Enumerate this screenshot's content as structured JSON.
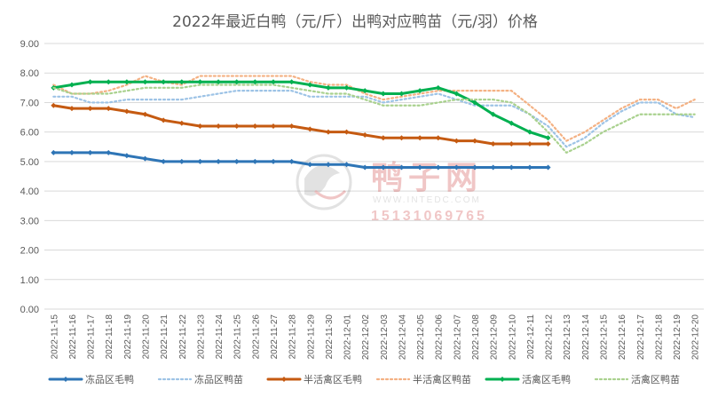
{
  "chart_data": {
    "type": "line",
    "title": "2022年最近白鸭（元/斤）出鸭对应鸭苗（元/羽）价格",
    "xlabel": "",
    "ylabel": "",
    "ylim": [
      0,
      9
    ],
    "yticks": [
      "0.00",
      "1.00",
      "2.00",
      "3.00",
      "4.00",
      "5.00",
      "6.00",
      "7.00",
      "8.00",
      "9.00"
    ],
    "grid": true,
    "legend_position": "bottom",
    "categories": [
      "2022-11-15",
      "2022-11-16",
      "2022-11-17",
      "2022-11-18",
      "2022-11-19",
      "2022-11-20",
      "2022-11-21",
      "2022-11-22",
      "2022-11-23",
      "2022-11-24",
      "2022-11-25",
      "2022-11-26",
      "2022-11-27",
      "2022-11-28",
      "2022-11-29",
      "2022-11-30",
      "2022-12-01",
      "2022-12-02",
      "2022-12-03",
      "2022-12-04",
      "2022-12-05",
      "2022-12-06",
      "2022-12-07",
      "2022-12-08",
      "2022-12-09",
      "2022-12-10",
      "2022-12-11",
      "2022-12-12",
      "2022-12-13",
      "2022-12-14",
      "2022-12-15",
      "2022-12-16",
      "2022-12-17",
      "2022-12-18",
      "2022-12-19",
      "2022-12-20"
    ],
    "series": [
      {
        "name": "冻品区毛鸭",
        "color": "#2e75b6",
        "style": "solid",
        "values": [
          5.3,
          5.3,
          5.3,
          5.3,
          5.2,
          5.1,
          5.0,
          5.0,
          5.0,
          5.0,
          5.0,
          5.0,
          5.0,
          5.0,
          4.9,
          4.9,
          4.9,
          4.8,
          4.8,
          4.8,
          4.8,
          4.8,
          4.8,
          4.8,
          4.8,
          4.8,
          4.8,
          4.8,
          null,
          null,
          null,
          null,
          null,
          null,
          null,
          null
        ]
      },
      {
        "name": "冻品区鸭苗",
        "color": "#9dc3e6",
        "style": "dotted",
        "values": [
          7.2,
          7.2,
          7.0,
          7.0,
          7.1,
          7.1,
          7.1,
          7.1,
          7.2,
          7.3,
          7.4,
          7.4,
          7.4,
          7.4,
          7.2,
          7.2,
          7.2,
          7.2,
          7.0,
          7.1,
          7.2,
          7.3,
          7.1,
          6.9,
          6.9,
          6.9,
          6.6,
          6.2,
          5.5,
          5.8,
          6.3,
          6.7,
          7.0,
          7.0,
          6.6,
          6.5
        ]
      },
      {
        "name": "半活禽区毛鸭",
        "color": "#c55a11",
        "style": "solid",
        "values": [
          6.9,
          6.8,
          6.8,
          6.8,
          6.7,
          6.6,
          6.4,
          6.3,
          6.2,
          6.2,
          6.2,
          6.2,
          6.2,
          6.2,
          6.1,
          6.0,
          6.0,
          5.9,
          5.8,
          5.8,
          5.8,
          5.8,
          5.7,
          5.7,
          5.6,
          5.6,
          5.6,
          5.6,
          null,
          null,
          null,
          null,
          null,
          null,
          null,
          null
        ]
      },
      {
        "name": "半活禽区鸭苗",
        "color": "#f4b183",
        "style": "dotted",
        "values": [
          7.6,
          7.3,
          7.3,
          7.4,
          7.6,
          7.9,
          7.7,
          7.6,
          7.9,
          7.9,
          7.9,
          7.9,
          7.9,
          7.9,
          7.7,
          7.6,
          7.6,
          7.3,
          7.1,
          7.2,
          7.3,
          7.4,
          7.4,
          7.4,
          7.4,
          7.4,
          6.9,
          6.4,
          5.7,
          6.0,
          6.4,
          6.8,
          7.1,
          7.1,
          6.8,
          7.1
        ]
      },
      {
        "name": "活禽区毛鸭",
        "color": "#00b050",
        "style": "solid",
        "values": [
          7.5,
          7.6,
          7.7,
          7.7,
          7.7,
          7.7,
          7.7,
          7.7,
          7.7,
          7.7,
          7.7,
          7.7,
          7.7,
          7.7,
          7.6,
          7.5,
          7.5,
          7.4,
          7.3,
          7.3,
          7.4,
          7.5,
          7.3,
          7.0,
          6.6,
          6.3,
          6.0,
          5.8,
          null,
          null,
          null,
          null,
          null,
          null,
          null,
          null
        ]
      },
      {
        "name": "活禽区鸭苗",
        "color": "#a9d18e",
        "style": "dotted",
        "values": [
          7.5,
          7.3,
          7.3,
          7.3,
          7.4,
          7.5,
          7.5,
          7.5,
          7.6,
          7.6,
          7.6,
          7.6,
          7.6,
          7.5,
          7.4,
          7.3,
          7.3,
          7.1,
          6.9,
          6.9,
          6.9,
          7.0,
          7.1,
          7.1,
          7.1,
          7.0,
          6.6,
          6.0,
          5.3,
          5.6,
          6.0,
          6.3,
          6.6,
          6.6,
          6.6,
          6.6
        ]
      }
    ]
  },
  "watermark": {
    "brand": "鸭子网",
    "url": "WWW.INTEDC.COM",
    "phone": "15131069765"
  }
}
